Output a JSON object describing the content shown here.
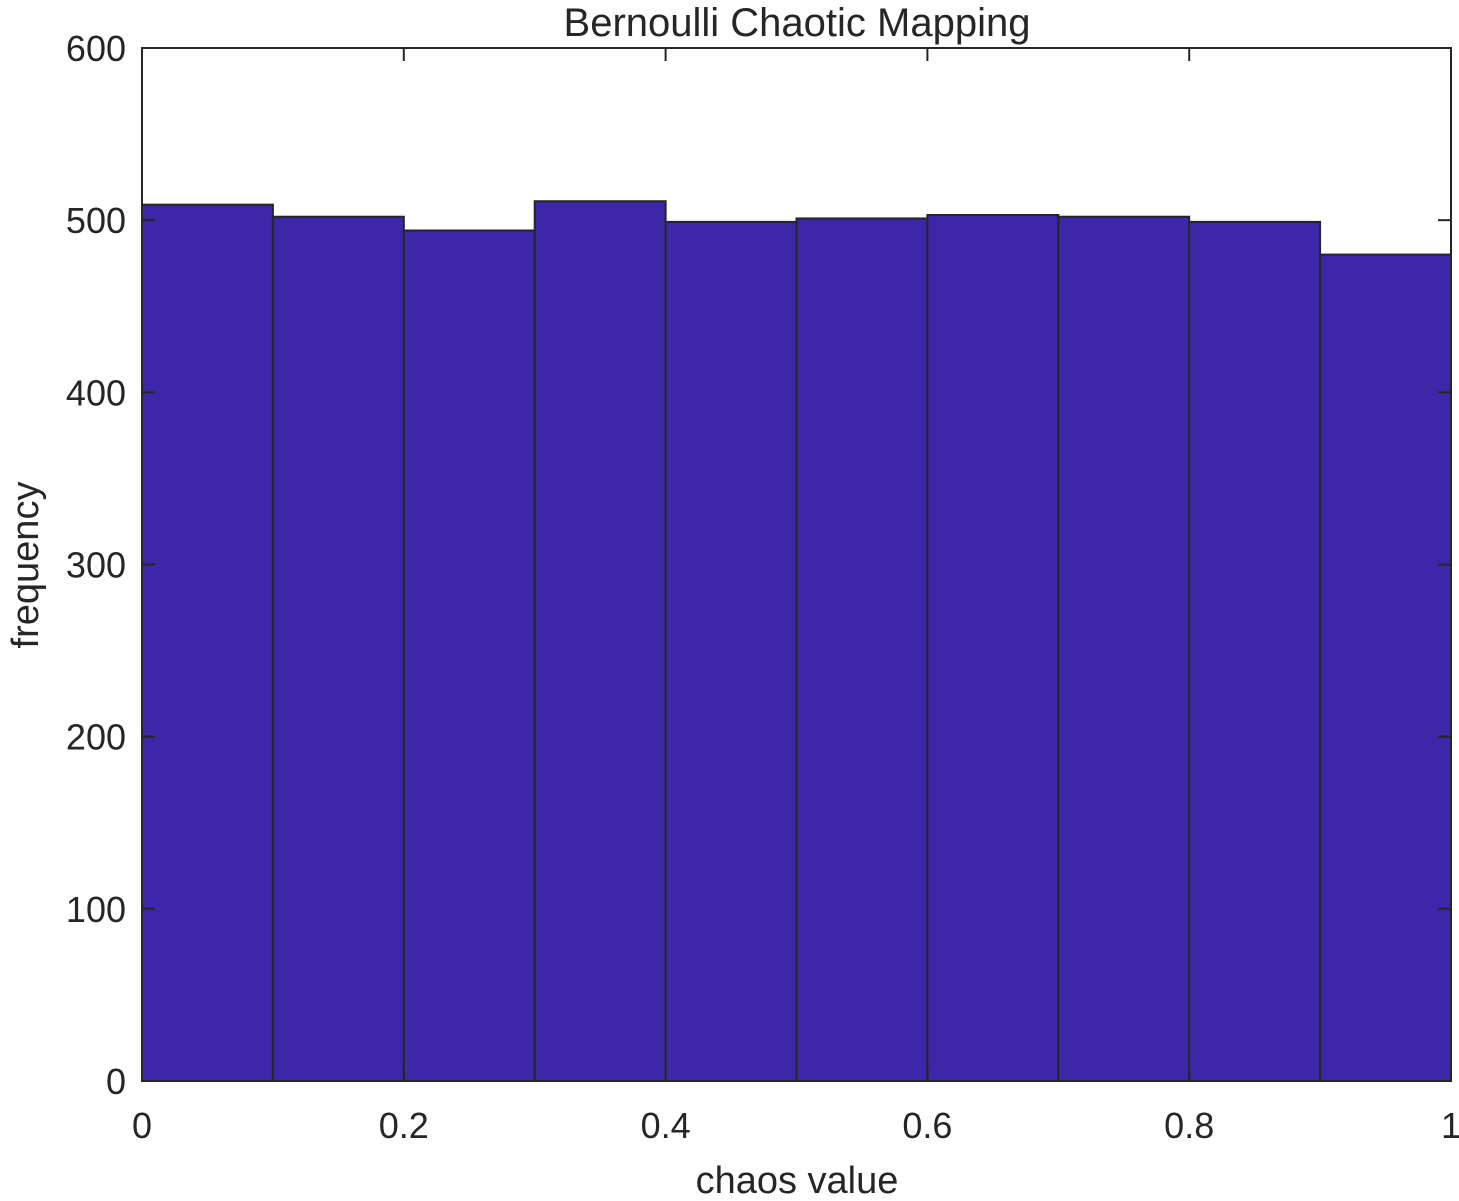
{
  "chart_data": {
    "type": "bar",
    "title": "Bernoulli Chaotic Mapping",
    "xlabel": "chaos value",
    "ylabel": "frequency",
    "xlim": [
      0,
      1
    ],
    "ylim": [
      0,
      600
    ],
    "xticks": [
      0,
      0.2,
      0.4,
      0.6,
      0.8,
      1
    ],
    "xtick_labels": [
      "0",
      "0.2",
      "0.4",
      "0.6",
      "0.8",
      "1"
    ],
    "yticks": [
      0,
      100,
      200,
      300,
      400,
      500,
      600
    ],
    "ytick_labels": [
      "0",
      "100",
      "200",
      "300",
      "400",
      "500",
      "600"
    ],
    "bins": [
      {
        "start": 0.0,
        "end": 0.1,
        "value": 509
      },
      {
        "start": 0.1,
        "end": 0.2,
        "value": 502
      },
      {
        "start": 0.2,
        "end": 0.3,
        "value": 494
      },
      {
        "start": 0.3,
        "end": 0.4,
        "value": 511
      },
      {
        "start": 0.4,
        "end": 0.5,
        "value": 499
      },
      {
        "start": 0.5,
        "end": 0.6,
        "value": 501
      },
      {
        "start": 0.6,
        "end": 0.7,
        "value": 503
      },
      {
        "start": 0.7,
        "end": 0.8,
        "value": 502
      },
      {
        "start": 0.8,
        "end": 0.9,
        "value": 499
      },
      {
        "start": 0.9,
        "end": 1.0,
        "value": 480
      }
    ],
    "bar_color": "#3d27a8",
    "edge_color": "#262626",
    "grid": false,
    "legend": "none"
  }
}
